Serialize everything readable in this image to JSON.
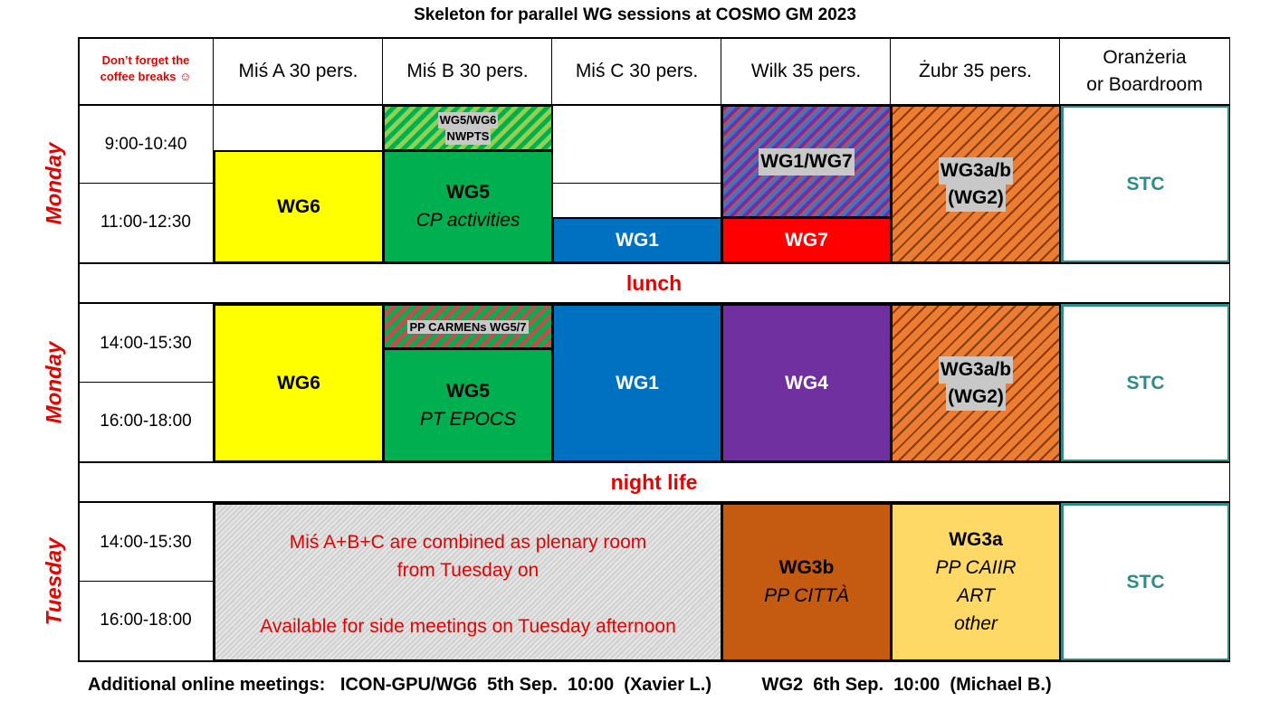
{
  "title": "Skeleton for parallel WG sessions at COSMO GM 2023",
  "corner_note": [
    "Don’t forget the",
    "coffee breaks ☺"
  ],
  "rooms": [
    "Miś A 30 pers.",
    "Miś B 30 pers.",
    "Miś C 30 pers.",
    "Wilk 35 pers.",
    "Żubr 35 pers.",
    "Oranżeria",
    "or Boardroom"
  ],
  "days": {
    "monday": "Monday",
    "tuesday": "Tuesday"
  },
  "times": {
    "t1": "9:00-10:40",
    "t2": "11:00-12:30",
    "t3": "14:00-15:30",
    "t4": "16:00-18:00"
  },
  "separators": {
    "lunch": "lunch",
    "night": "night life"
  },
  "blocks": {
    "wg6": "WG6",
    "wg5nwp": [
      "WG5/WG6",
      "NWPTS"
    ],
    "wg5": "WG5",
    "cp_activities": "CP activities",
    "wg1wg7": "WG1/WG7",
    "wg3ab": [
      "WG3a/b",
      "(WG2)"
    ],
    "stc": "STC",
    "wg1": "WG1",
    "wg7": "WG7",
    "pp_carmens": "PP CARMENs WG5/7",
    "pt_epocs": "PT EPOCS",
    "wg4": "WG4",
    "plenary": [
      "Miś A+B+C are combined as plenary room",
      "from Tuesday on",
      "Available for side meetings on Tuesday afternoon"
    ],
    "wg3b": "WG3b",
    "pp_citta": "PP CITTÀ",
    "wg3a": "WG3a",
    "wg3a_lines": [
      "PP CAIIR",
      "ART",
      "other"
    ]
  },
  "colors": {
    "yellow": "#ffff00",
    "green": "#00b050",
    "blue": "#0070c0",
    "red": "#ff0000",
    "purple": "#7030a0",
    "orange": "#ed7d31",
    "brown": "#c55a11",
    "lightorange": "#ffd966",
    "teal": "#2e8b86",
    "gray": "#d9d9d9"
  },
  "footer": "Additional online meetings:   ICON-GPU/WG6  5th Sep.  10:00  (Xavier L.)          WG2  6th Sep.  10:00  (Michael B.)"
}
